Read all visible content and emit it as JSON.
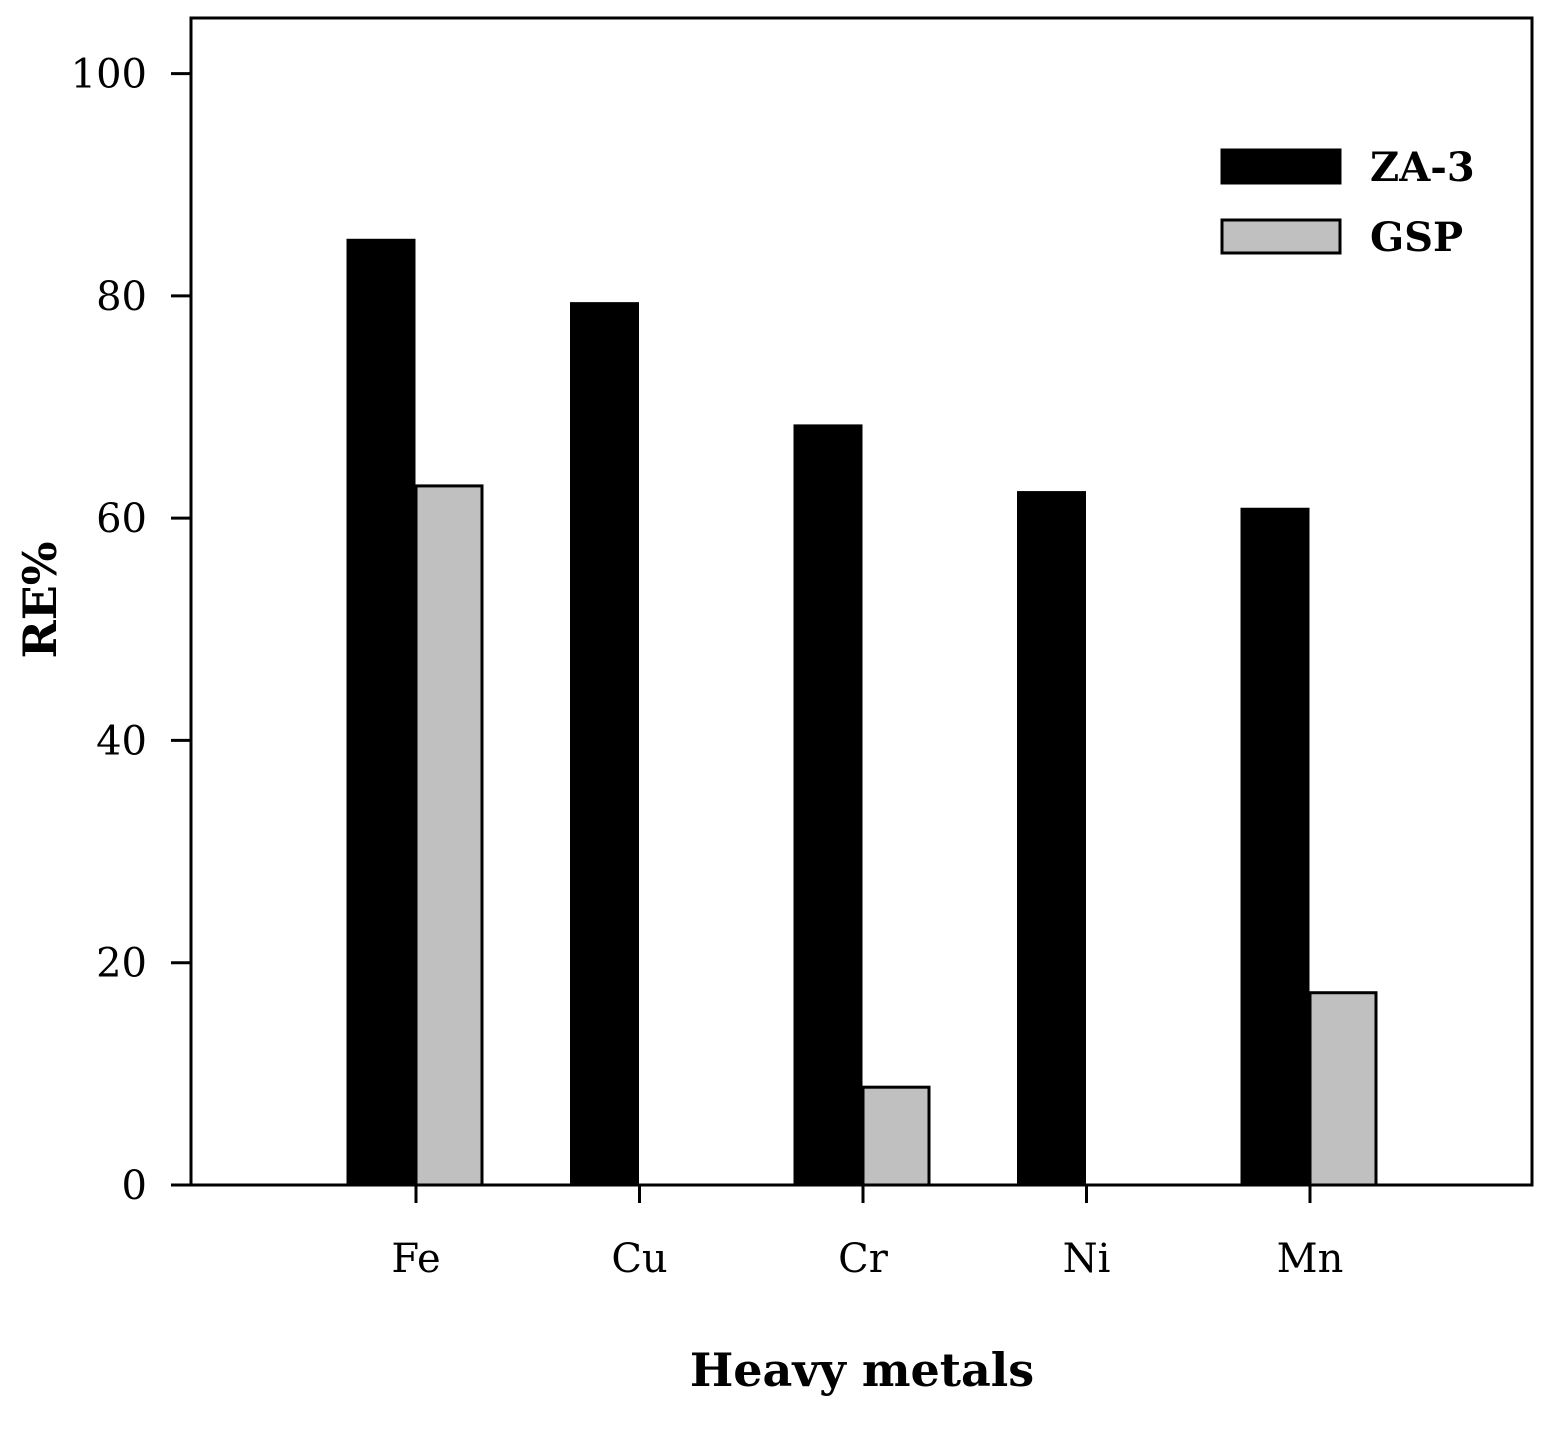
{
  "chart_data": {
    "type": "bar",
    "title": "",
    "xlabel": "Heavy metals",
    "ylabel": "RE%",
    "ylim": [
      0,
      105
    ],
    "yticks": [
      0,
      20,
      40,
      60,
      80,
      100
    ],
    "grid": false,
    "legend_position": "top-right",
    "categories": [
      "Fe",
      "Cu",
      "Cr",
      "Ni",
      "Mn"
    ],
    "series": [
      {
        "name": "ZA-3",
        "color": "#000000",
        "values": [
          85,
          79.3,
          68.3,
          62.3,
          60.8
        ]
      },
      {
        "name": "GSP",
        "color": "#c0c0c0",
        "values": [
          62.9,
          0,
          8.8,
          0,
          17.3
        ]
      }
    ]
  }
}
